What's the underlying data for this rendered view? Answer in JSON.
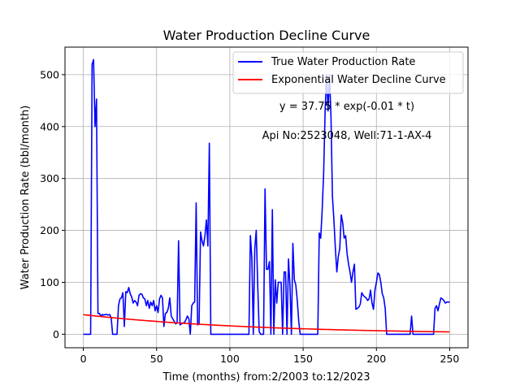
{
  "chart_data": {
    "type": "line",
    "title": "Water Production Decline Curve",
    "xlabel": "Time (months) from:2/2003 to:12/2023",
    "ylabel": "Water Production Rate (bbl/month)",
    "xlim": [
      -12.5,
      262.5
    ],
    "ylim": [
      -26,
      553
    ],
    "xticks": [
      0,
      50,
      100,
      150,
      200,
      250
    ],
    "yticks": [
      0,
      100,
      200,
      300,
      400,
      500
    ],
    "grid": true,
    "legend_position": "top-right",
    "annotations": [
      "y = 37.75 * exp(-0.01 * t)",
      "Api No:2523048, Well:71-1-AX-4"
    ],
    "series": [
      {
        "name": "True Water Production Rate",
        "color": "#0000ff",
        "points": [
          [
            0,
            0
          ],
          [
            1,
            0
          ],
          [
            2,
            0
          ],
          [
            3,
            0
          ],
          [
            4,
            0
          ],
          [
            5,
            0
          ],
          [
            6,
            520
          ],
          [
            7,
            529
          ],
          [
            8,
            400
          ],
          [
            9,
            453
          ],
          [
            10,
            40
          ],
          [
            11,
            40
          ],
          [
            12,
            35
          ],
          [
            13,
            38
          ],
          [
            14,
            37
          ],
          [
            15,
            38
          ],
          [
            16,
            38
          ],
          [
            17,
            37
          ],
          [
            18,
            38
          ],
          [
            19,
            32
          ],
          [
            20,
            0
          ],
          [
            21,
            0
          ],
          [
            22,
            0
          ],
          [
            23,
            0
          ],
          [
            24,
            55
          ],
          [
            25,
            68
          ],
          [
            26,
            70
          ],
          [
            27,
            80
          ],
          [
            28,
            15
          ],
          [
            29,
            82
          ],
          [
            30,
            80
          ],
          [
            31,
            90
          ],
          [
            32,
            78
          ],
          [
            33,
            72
          ],
          [
            34,
            60
          ],
          [
            35,
            65
          ],
          [
            36,
            62
          ],
          [
            37,
            55
          ],
          [
            38,
            75
          ],
          [
            39,
            78
          ],
          [
            40,
            77
          ],
          [
            41,
            70
          ],
          [
            42,
            68
          ],
          [
            43,
            55
          ],
          [
            44,
            65
          ],
          [
            45,
            50
          ],
          [
            46,
            62
          ],
          [
            47,
            55
          ],
          [
            48,
            65
          ],
          [
            49,
            45
          ],
          [
            50,
            55
          ],
          [
            51,
            42
          ],
          [
            52,
            68
          ],
          [
            53,
            75
          ],
          [
            54,
            70
          ],
          [
            55,
            15
          ],
          [
            56,
            40
          ],
          [
            57,
            42
          ],
          [
            58,
            50
          ],
          [
            59,
            70
          ],
          [
            60,
            35
          ],
          [
            61,
            30
          ],
          [
            62,
            25
          ],
          [
            63,
            20
          ],
          [
            64,
            22
          ],
          [
            65,
            180
          ],
          [
            66,
            18
          ],
          [
            67,
            20
          ],
          [
            68,
            22
          ],
          [
            69,
            22
          ],
          [
            70,
            28
          ],
          [
            71,
            35
          ],
          [
            72,
            30
          ],
          [
            73,
            0
          ],
          [
            74,
            55
          ],
          [
            75,
            60
          ],
          [
            76,
            62
          ],
          [
            77,
            253
          ],
          [
            78,
            18
          ],
          [
            79,
            20
          ],
          [
            80,
            197
          ],
          [
            81,
            180
          ],
          [
            82,
            170
          ],
          [
            83,
            190
          ],
          [
            84,
            220
          ],
          [
            85,
            170
          ],
          [
            86,
            368
          ],
          [
            87,
            0
          ],
          [
            88,
            0
          ],
          [
            89,
            0
          ],
          [
            90,
            0
          ],
          [
            91,
            0
          ],
          [
            92,
            0
          ],
          [
            93,
            0
          ],
          [
            94,
            0
          ],
          [
            95,
            0
          ],
          [
            96,
            0
          ],
          [
            97,
            0
          ],
          [
            98,
            0
          ],
          [
            99,
            0
          ],
          [
            100,
            0
          ],
          [
            101,
            0
          ],
          [
            102,
            0
          ],
          [
            103,
            0
          ],
          [
            104,
            0
          ],
          [
            105,
            0
          ],
          [
            106,
            0
          ],
          [
            107,
            0
          ],
          [
            108,
            0
          ],
          [
            109,
            0
          ],
          [
            110,
            0
          ],
          [
            111,
            0
          ],
          [
            112,
            0
          ],
          [
            113,
            0
          ],
          [
            114,
            190
          ],
          [
            115,
            148
          ],
          [
            116,
            0
          ],
          [
            117,
            165
          ],
          [
            118,
            200
          ],
          [
            119,
            95
          ],
          [
            120,
            5
          ],
          [
            121,
            0
          ],
          [
            122,
            0
          ],
          [
            123,
            0
          ],
          [
            124,
            280
          ],
          [
            125,
            125
          ],
          [
            126,
            125
          ],
          [
            127,
            140
          ],
          [
            128,
            0
          ],
          [
            129,
            240
          ],
          [
            130,
            0
          ],
          [
            131,
            105
          ],
          [
            132,
            60
          ],
          [
            133,
            100
          ],
          [
            134,
            100
          ],
          [
            135,
            100
          ],
          [
            136,
            0
          ],
          [
            137,
            120
          ],
          [
            138,
            120
          ],
          [
            139,
            0
          ],
          [
            140,
            145
          ],
          [
            141,
            95
          ],
          [
            142,
            0
          ],
          [
            143,
            175
          ],
          [
            144,
            105
          ],
          [
            145,
            95
          ],
          [
            146,
            65
          ],
          [
            147,
            25
          ],
          [
            148,
            0
          ],
          [
            149,
            0
          ],
          [
            150,
            0
          ],
          [
            151,
            0
          ],
          [
            152,
            0
          ],
          [
            153,
            0
          ],
          [
            154,
            0
          ],
          [
            155,
            0
          ],
          [
            156,
            0
          ],
          [
            157,
            0
          ],
          [
            158,
            0
          ],
          [
            159,
            0
          ],
          [
            160,
            0
          ],
          [
            161,
            195
          ],
          [
            162,
            185
          ],
          [
            163,
            240
          ],
          [
            164,
            310
          ],
          [
            165,
            430
          ],
          [
            166,
            500
          ],
          [
            167,
            430
          ],
          [
            168,
            500
          ],
          [
            169,
            420
          ],
          [
            170,
            265
          ],
          [
            171,
            220
          ],
          [
            172,
            165
          ],
          [
            173,
            120
          ],
          [
            174,
            150
          ],
          [
            175,
            165
          ],
          [
            176,
            230
          ],
          [
            177,
            215
          ],
          [
            178,
            185
          ],
          [
            179,
            190
          ],
          [
            180,
            155
          ],
          [
            181,
            135
          ],
          [
            182,
            120
          ],
          [
            183,
            100
          ],
          [
            184,
            120
          ],
          [
            185,
            135
          ],
          [
            186,
            48
          ],
          [
            187,
            50
          ],
          [
            188,
            52
          ],
          [
            189,
            58
          ],
          [
            190,
            80
          ],
          [
            191,
            75
          ],
          [
            192,
            72
          ],
          [
            193,
            70
          ],
          [
            194,
            65
          ],
          [
            195,
            68
          ],
          [
            196,
            85
          ],
          [
            197,
            60
          ],
          [
            198,
            48
          ],
          [
            199,
            85
          ],
          [
            200,
            100
          ],
          [
            201,
            118
          ],
          [
            202,
            115
          ],
          [
            203,
            100
          ],
          [
            204,
            78
          ],
          [
            205,
            70
          ],
          [
            206,
            50
          ],
          [
            207,
            0
          ],
          [
            208,
            0
          ],
          [
            209,
            0
          ],
          [
            210,
            0
          ],
          [
            211,
            0
          ],
          [
            212,
            0
          ],
          [
            213,
            0
          ],
          [
            214,
            0
          ],
          [
            215,
            0
          ],
          [
            216,
            0
          ],
          [
            217,
            0
          ],
          [
            218,
            0
          ],
          [
            219,
            0
          ],
          [
            220,
            0
          ],
          [
            221,
            0
          ],
          [
            222,
            0
          ],
          [
            223,
            0
          ],
          [
            224,
            35
          ],
          [
            225,
            0
          ],
          [
            226,
            0
          ],
          [
            227,
            0
          ],
          [
            228,
            0
          ],
          [
            229,
            0
          ],
          [
            230,
            0
          ],
          [
            231,
            0
          ],
          [
            232,
            0
          ],
          [
            233,
            0
          ],
          [
            234,
            0
          ],
          [
            235,
            0
          ],
          [
            236,
            0
          ],
          [
            237,
            0
          ],
          [
            238,
            0
          ],
          [
            239,
            0
          ],
          [
            240,
            50
          ],
          [
            241,
            55
          ],
          [
            242,
            45
          ],
          [
            243,
            58
          ],
          [
            244,
            70
          ],
          [
            245,
            68
          ],
          [
            246,
            65
          ],
          [
            247,
            60
          ],
          [
            248,
            62
          ],
          [
            249,
            62
          ],
          [
            250,
            62
          ]
        ]
      },
      {
        "name": "Exponential Water Decline Curve",
        "color": "#ff0000",
        "equation": {
          "a": 37.75,
          "b": 0.0085
        },
        "x_range": [
          0,
          250
        ]
      }
    ]
  }
}
